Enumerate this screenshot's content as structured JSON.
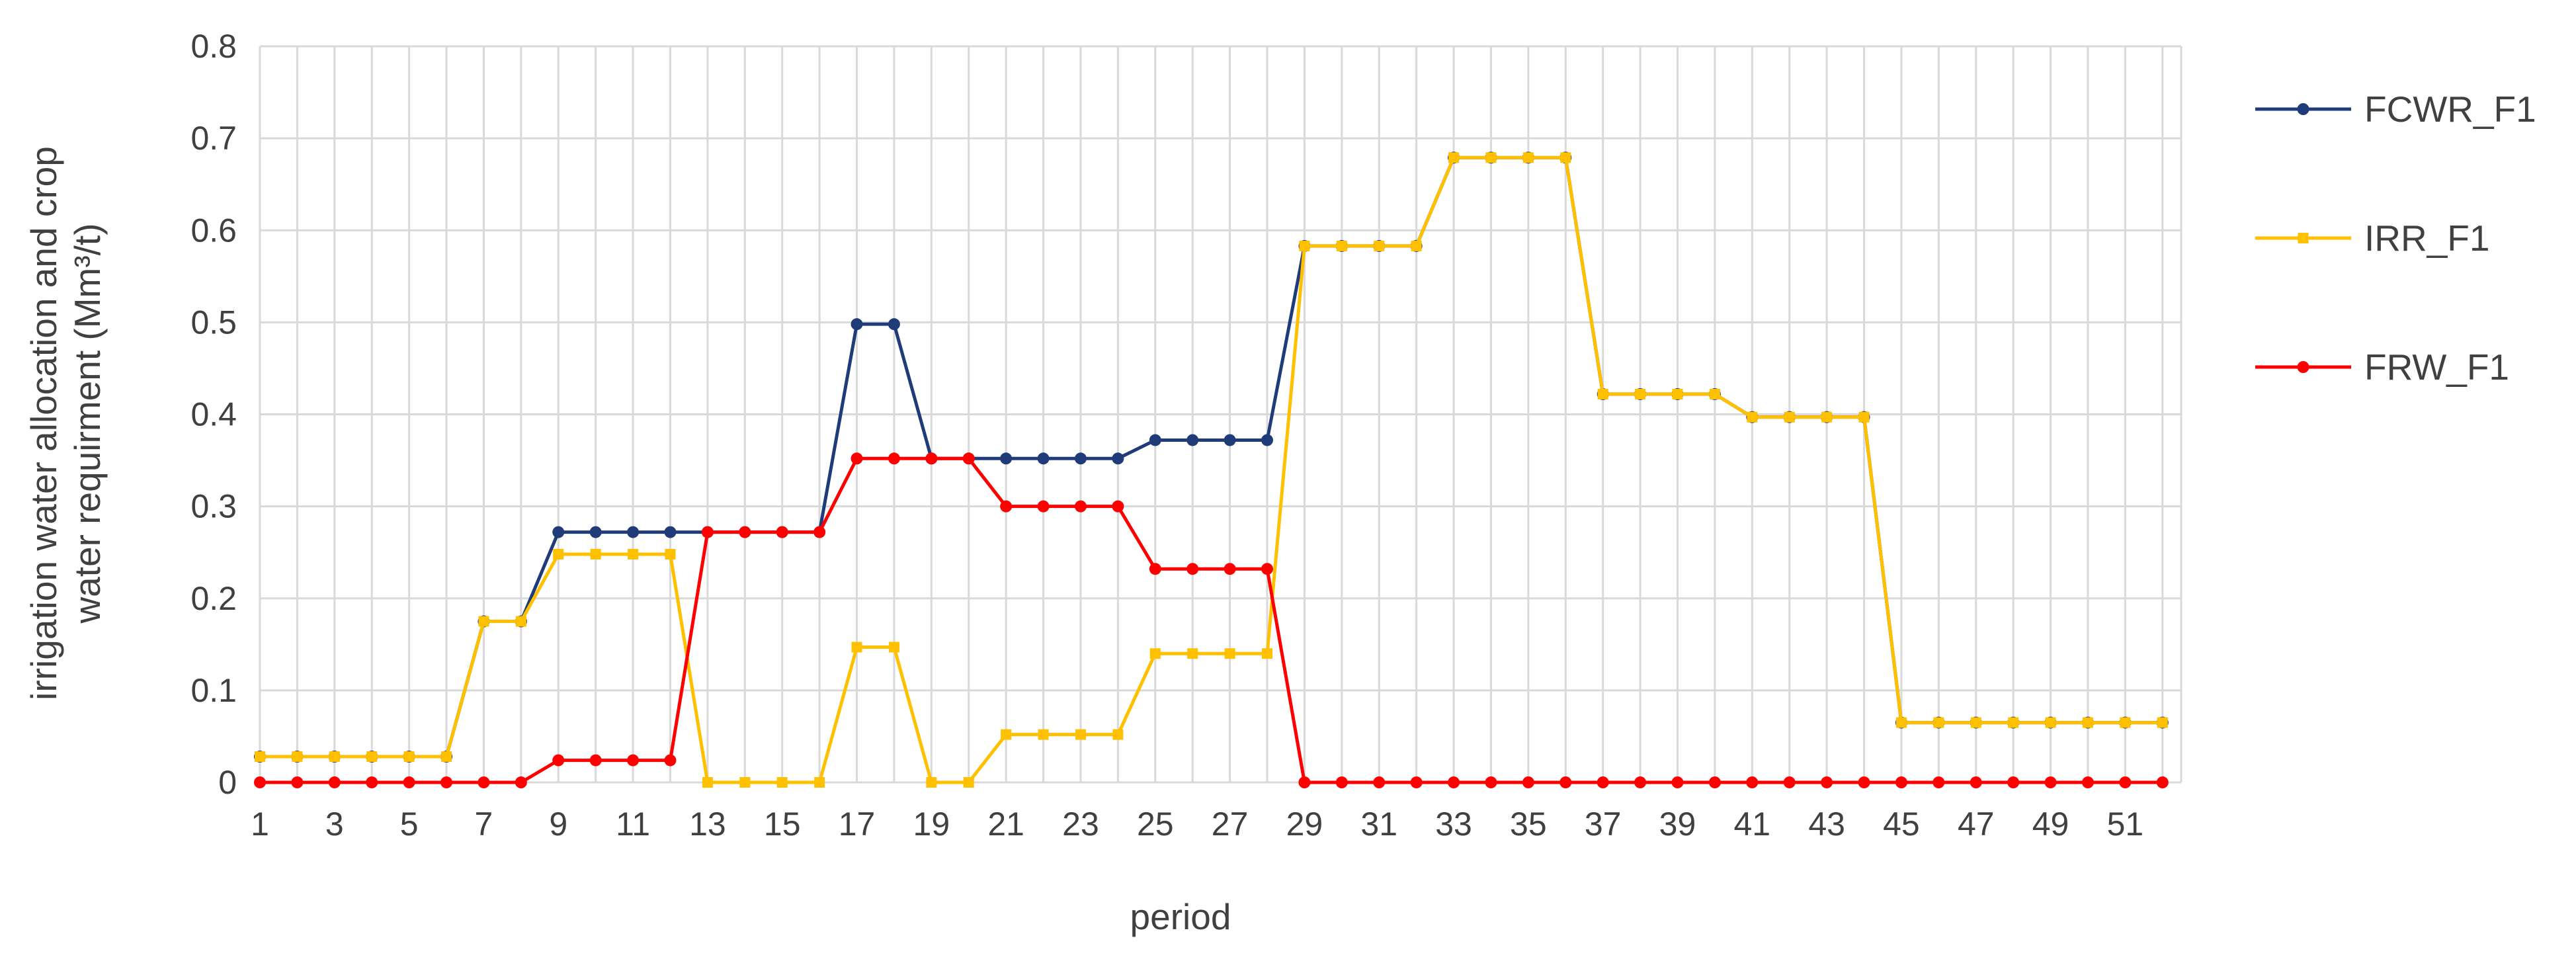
{
  "chart_data": {
    "type": "line",
    "xlabel": "period",
    "ylabel_line1": "irrigation water allocation and crop",
    "ylabel_line2": "water requirment (Mm³/t)",
    "ylim": [
      0,
      0.8
    ],
    "yticks": [
      "0",
      "0.1",
      "0.2",
      "0.3",
      "0.4",
      "0.5",
      "0.6",
      "0.7",
      "0.8"
    ],
    "xticks": [
      "1",
      "3",
      "5",
      "7",
      "9",
      "11",
      "13",
      "15",
      "17",
      "19",
      "21",
      "23",
      "25",
      "27",
      "29",
      "31",
      "33",
      "35",
      "37",
      "39",
      "41",
      "43",
      "45",
      "47",
      "49",
      "51"
    ],
    "x": [
      1,
      2,
      3,
      4,
      5,
      6,
      7,
      8,
      9,
      10,
      11,
      12,
      13,
      14,
      15,
      16,
      17,
      18,
      19,
      20,
      21,
      22,
      23,
      24,
      25,
      26,
      27,
      28,
      29,
      30,
      31,
      32,
      33,
      34,
      35,
      36,
      37,
      38,
      39,
      40,
      41,
      42,
      43,
      44,
      45,
      46,
      47,
      48,
      49,
      50,
      51,
      52
    ],
    "grid": true,
    "legend_position": "right",
    "series": [
      {
        "name": "FCWR_F1",
        "color": "#1f3c78",
        "marker": "circle",
        "values": [
          0.028,
          0.028,
          0.028,
          0.028,
          0.028,
          0.028,
          0.175,
          0.175,
          0.272,
          0.272,
          0.272,
          0.272,
          0.272,
          0.272,
          0.272,
          0.272,
          0.498,
          0.498,
          0.352,
          0.352,
          0.352,
          0.352,
          0.352,
          0.352,
          0.372,
          0.372,
          0.372,
          0.372,
          0.583,
          0.583,
          0.583,
          0.583,
          0.679,
          0.679,
          0.679,
          0.679,
          0.422,
          0.422,
          0.422,
          0.422,
          0.397,
          0.397,
          0.397,
          0.397,
          0.065,
          0.065,
          0.065,
          0.065,
          0.065,
          0.065,
          0.065,
          0.065
        ]
      },
      {
        "name": "IRR_F1",
        "color": "#ffc000",
        "marker": "square",
        "values": [
          0.028,
          0.028,
          0.028,
          0.028,
          0.028,
          0.028,
          0.175,
          0.175,
          0.248,
          0.248,
          0.248,
          0.248,
          0.0,
          0.0,
          0.0,
          0.0,
          0.147,
          0.147,
          0.0,
          0.0,
          0.052,
          0.052,
          0.052,
          0.052,
          0.14,
          0.14,
          0.14,
          0.14,
          0.583,
          0.583,
          0.583,
          0.583,
          0.679,
          0.679,
          0.679,
          0.679,
          0.422,
          0.422,
          0.422,
          0.422,
          0.397,
          0.397,
          0.397,
          0.397,
          0.065,
          0.065,
          0.065,
          0.065,
          0.065,
          0.065,
          0.065,
          0.065
        ]
      },
      {
        "name": "FRW_F1",
        "color": "#ff0000",
        "marker": "circle",
        "values": [
          0,
          0,
          0,
          0,
          0,
          0,
          0,
          0,
          0.024,
          0.024,
          0.024,
          0.024,
          0.272,
          0.272,
          0.272,
          0.272,
          0.352,
          0.352,
          0.352,
          0.352,
          0.3,
          0.3,
          0.3,
          0.3,
          0.232,
          0.232,
          0.232,
          0.232,
          0,
          0,
          0,
          0,
          0,
          0,
          0,
          0,
          0,
          0,
          0,
          0,
          0,
          0,
          0,
          0,
          0,
          0,
          0,
          0,
          0,
          0,
          0,
          0
        ]
      }
    ]
  }
}
